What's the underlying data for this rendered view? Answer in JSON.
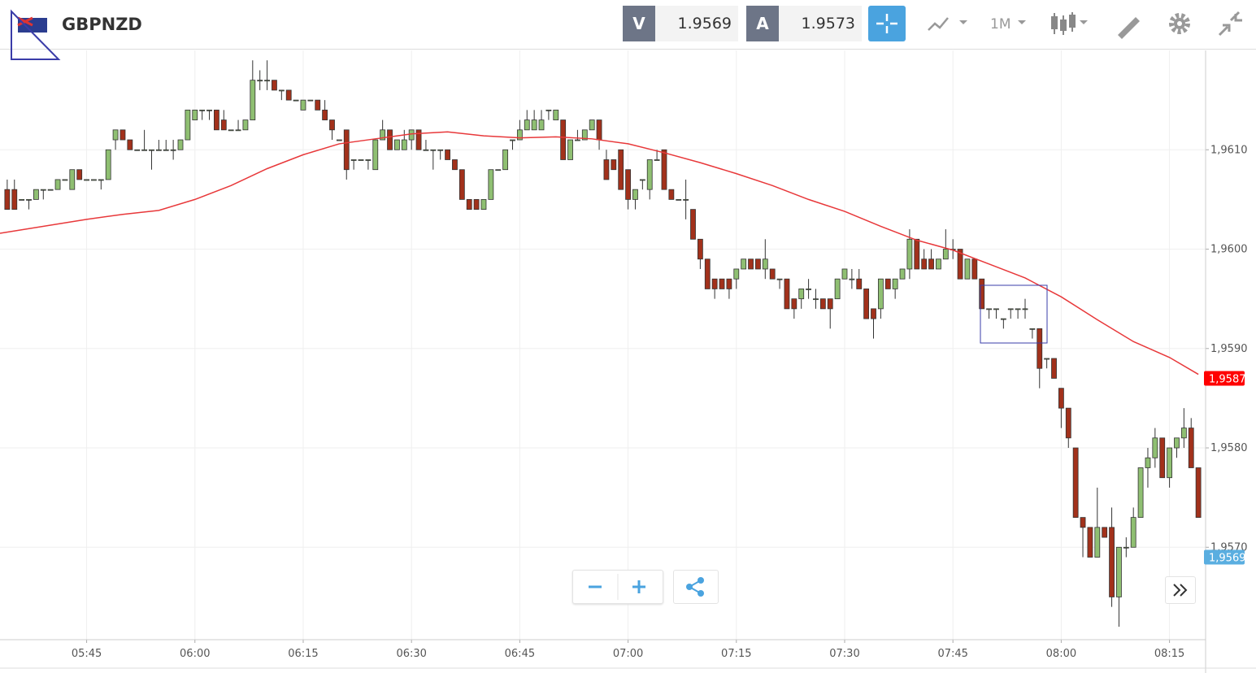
{
  "header": {
    "symbol": "GBPNZD",
    "bid_label": "V",
    "bid": "1.9569",
    "ask_label": "A",
    "ask": "1.9573",
    "timeframe": "1M"
  },
  "chart_data": {
    "type": "candlestick",
    "up_color": "#8fbf72",
    "down_color": "#a2311b",
    "grid": true,
    "xlim": [
      "05:33",
      "08:20"
    ],
    "ylim": [
      1.95607,
      1.962
    ],
    "xticks": [
      "05:45",
      "06:00",
      "06:15",
      "06:30",
      "06:45",
      "07:00",
      "07:15",
      "07:30",
      "07:45",
      "08:00",
      "08:15"
    ],
    "yticks": [
      {
        "value": 1.957,
        "label": "1,9570"
      },
      {
        "value": 1.958,
        "label": "1,9580"
      },
      {
        "value": 1.959,
        "label": "1,9590"
      },
      {
        "value": 1.96,
        "label": "1,9600"
      },
      {
        "value": 1.961,
        "label": "1,9610"
      }
    ],
    "x": [
      "05:34",
      "05:35",
      "05:36",
      "05:37",
      "05:38",
      "05:39",
      "05:40",
      "05:41",
      "05:42",
      "05:43",
      "05:44",
      "05:45",
      "05:46",
      "05:47",
      "05:48",
      "05:49",
      "05:50",
      "05:51",
      "05:52",
      "05:53",
      "05:54",
      "05:55",
      "05:56",
      "05:57",
      "05:58",
      "05:59",
      "06:00",
      "06:01",
      "06:02",
      "06:03",
      "06:04",
      "06:05",
      "06:06",
      "06:07",
      "06:08",
      "06:09",
      "06:10",
      "06:11",
      "06:12",
      "06:13",
      "06:14",
      "06:15",
      "06:16",
      "06:17",
      "06:18",
      "06:19",
      "06:20",
      "06:21",
      "06:22",
      "06:23",
      "06:24",
      "06:25",
      "06:26",
      "06:27",
      "06:28",
      "06:29",
      "06:30",
      "06:31",
      "06:32",
      "06:33",
      "06:34",
      "06:35",
      "06:36",
      "06:37",
      "06:38",
      "06:39",
      "06:40",
      "06:41",
      "06:42",
      "06:43",
      "06:44",
      "06:45",
      "06:46",
      "06:47",
      "06:48",
      "06:49",
      "06:50",
      "06:51",
      "06:52",
      "06:53",
      "06:54",
      "06:55",
      "06:56",
      "06:57",
      "06:58",
      "06:59",
      "07:00",
      "07:01",
      "07:02",
      "07:03",
      "07:04",
      "07:05",
      "07:06",
      "07:07",
      "07:08",
      "07:09",
      "07:10",
      "07:11",
      "07:12",
      "07:13",
      "07:14",
      "07:15",
      "07:16",
      "07:17",
      "07:18",
      "07:19",
      "07:20",
      "07:21",
      "07:22",
      "07:23",
      "07:24",
      "07:25",
      "07:26",
      "07:27",
      "07:28",
      "07:29",
      "07:30",
      "07:31",
      "07:32",
      "07:33",
      "07:34",
      "07:35",
      "07:36",
      "07:37",
      "07:38",
      "07:39",
      "07:40",
      "07:41",
      "07:42",
      "07:43",
      "07:44",
      "07:45",
      "07:46",
      "07:47",
      "07:48",
      "07:49",
      "07:50",
      "07:51",
      "07:52",
      "07:53",
      "07:54",
      "07:55",
      "07:56",
      "07:57",
      "07:58",
      "07:59",
      "08:00",
      "08:01",
      "08:02",
      "08:03",
      "08:04",
      "08:05",
      "08:06",
      "08:07",
      "08:08",
      "08:09",
      "08:10",
      "08:11",
      "08:12",
      "08:13",
      "08:14",
      "08:15",
      "08:16",
      "08:17",
      "08:18",
      "08:19"
    ],
    "ohlc": [
      [
        1.9606,
        1.9607,
        1.9604,
        1.9604
      ],
      [
        1.9606,
        1.9607,
        1.9604,
        1.9604
      ],
      [
        1.9605,
        1.9605,
        1.9605,
        1.9605
      ],
      [
        1.9605,
        1.9605,
        1.9604,
        1.9605
      ],
      [
        1.9605,
        1.9606,
        1.9605,
        1.9606
      ],
      [
        1.9606,
        1.9606,
        1.9605,
        1.9606
      ],
      [
        1.9606,
        1.9606,
        1.9606,
        1.9606
      ],
      [
        1.9606,
        1.9607,
        1.9606,
        1.9607
      ],
      [
        1.9607,
        1.9607,
        1.9607,
        1.9607
      ],
      [
        1.9606,
        1.9608,
        1.9606,
        1.9608
      ],
      [
        1.9608,
        1.9608,
        1.9607,
        1.9607
      ],
      [
        1.9607,
        1.9607,
        1.9607,
        1.9607
      ],
      [
        1.9607,
        1.9607,
        1.9607,
        1.9607
      ],
      [
        1.9607,
        1.9607,
        1.9606,
        1.9607
      ],
      [
        1.9607,
        1.961,
        1.9607,
        1.961
      ],
      [
        1.9611,
        1.9612,
        1.961,
        1.9612
      ],
      [
        1.9612,
        1.9612,
        1.9611,
        1.9611
      ],
      [
        1.9611,
        1.9611,
        1.961,
        1.961
      ],
      [
        1.961,
        1.961,
        1.961,
        1.961
      ],
      [
        1.961,
        1.9612,
        1.961,
        1.961
      ],
      [
        1.961,
        1.961,
        1.9608,
        1.961
      ],
      [
        1.961,
        1.9611,
        1.961,
        1.961
      ],
      [
        1.961,
        1.9611,
        1.961,
        1.961
      ],
      [
        1.961,
        1.9611,
        1.9609,
        1.961
      ],
      [
        1.961,
        1.9611,
        1.961,
        1.9611
      ],
      [
        1.9611,
        1.9614,
        1.9611,
        1.9614
      ],
      [
        1.9613,
        1.9614,
        1.9613,
        1.9614
      ],
      [
        1.9614,
        1.9614,
        1.9613,
        1.9614
      ],
      [
        1.9614,
        1.9614,
        1.9613,
        1.9614
      ],
      [
        1.9614,
        1.9614,
        1.9612,
        1.9612
      ],
      [
        1.9613,
        1.9614,
        1.9612,
        1.9612
      ],
      [
        1.9612,
        1.9612,
        1.9612,
        1.9612
      ],
      [
        1.9612,
        1.9613,
        1.9612,
        1.9612
      ],
      [
        1.9612,
        1.9613,
        1.9612,
        1.9613
      ],
      [
        1.9613,
        1.9619,
        1.9613,
        1.9617
      ],
      [
        1.9617,
        1.9618,
        1.9616,
        1.9617
      ],
      [
        1.9617,
        1.9619,
        1.9616,
        1.9617
      ],
      [
        1.9617,
        1.9617,
        1.9616,
        1.9616
      ],
      [
        1.9616,
        1.9616,
        1.9615,
        1.9616
      ],
      [
        1.9616,
        1.9616,
        1.9615,
        1.9615
      ],
      [
        1.9615,
        1.9615,
        1.9615,
        1.9615
      ],
      [
        1.9614,
        1.9615,
        1.9614,
        1.9615
      ],
      [
        1.9615,
        1.9615,
        1.9615,
        1.9615
      ],
      [
        1.9615,
        1.9615,
        1.9614,
        1.9614
      ],
      [
        1.9614,
        1.9615,
        1.9613,
        1.9613
      ],
      [
        1.9613,
        1.9613,
        1.9611,
        1.9612
      ],
      [
        1.9611,
        1.9611,
        1.9611,
        1.9611
      ],
      [
        1.9612,
        1.9612,
        1.9607,
        1.9608
      ],
      [
        1.9609,
        1.9609,
        1.9608,
        1.9609
      ],
      [
        1.9609,
        1.9609,
        1.9609,
        1.9609
      ],
      [
        1.9609,
        1.9609,
        1.9608,
        1.9609
      ],
      [
        1.9608,
        1.9611,
        1.9608,
        1.9611
      ],
      [
        1.9611,
        1.9613,
        1.9611,
        1.9612
      ],
      [
        1.9612,
        1.9612,
        1.961,
        1.961
      ],
      [
        1.961,
        1.9611,
        1.961,
        1.9611
      ],
      [
        1.961,
        1.9612,
        1.961,
        1.9611
      ],
      [
        1.9611,
        1.9612,
        1.961,
        1.9612
      ],
      [
        1.9612,
        1.9612,
        1.961,
        1.961
      ],
      [
        1.961,
        1.9611,
        1.961,
        1.961
      ],
      [
        1.961,
        1.961,
        1.9608,
        1.961
      ],
      [
        1.961,
        1.961,
        1.9609,
        1.961
      ],
      [
        1.961,
        1.961,
        1.9609,
        1.9609
      ],
      [
        1.9609,
        1.9609,
        1.9608,
        1.9608
      ],
      [
        1.9608,
        1.9608,
        1.9605,
        1.9605
      ],
      [
        1.9605,
        1.9605,
        1.9604,
        1.9604
      ],
      [
        1.9605,
        1.9605,
        1.9604,
        1.9604
      ],
      [
        1.9604,
        1.9605,
        1.9604,
        1.9605
      ],
      [
        1.9605,
        1.9608,
        1.9605,
        1.9608
      ],
      [
        1.9608,
        1.9608,
        1.9608,
        1.9608
      ],
      [
        1.9608,
        1.961,
        1.9608,
        1.961
      ],
      [
        1.9611,
        1.9611,
        1.961,
        1.9611
      ],
      [
        1.9611,
        1.9613,
        1.9611,
        1.9612
      ],
      [
        1.9612,
        1.9614,
        1.9612,
        1.9613
      ],
      [
        1.9612,
        1.9614,
        1.9612,
        1.9613
      ],
      [
        1.9612,
        1.9614,
        1.9612,
        1.9613
      ],
      [
        1.9614,
        1.9614,
        1.9613,
        1.9614
      ],
      [
        1.9613,
        1.9614,
        1.9613,
        1.9614
      ],
      [
        1.9613,
        1.9613,
        1.9609,
        1.9609
      ],
      [
        1.9609,
        1.9611,
        1.9609,
        1.9611
      ],
      [
        1.9611,
        1.9612,
        1.9611,
        1.9611
      ],
      [
        1.9611,
        1.9612,
        1.9611,
        1.9612
      ],
      [
        1.9612,
        1.9613,
        1.9612,
        1.9613
      ],
      [
        1.9613,
        1.9613,
        1.961,
        1.9611
      ],
      [
        1.9609,
        1.961,
        1.9607,
        1.9607
      ],
      [
        1.9609,
        1.9609,
        1.9608,
        1.9608
      ],
      [
        1.961,
        1.961,
        1.9606,
        1.9606
      ],
      [
        1.9608,
        1.9608,
        1.9604,
        1.9605
      ],
      [
        1.9605,
        1.9606,
        1.9604,
        1.9606
      ],
      [
        1.9607,
        1.9607,
        1.9606,
        1.9607
      ],
      [
        1.9606,
        1.9609,
        1.9605,
        1.9609
      ],
      [
        1.9609,
        1.961,
        1.9609,
        1.9609
      ],
      [
        1.961,
        1.961,
        1.9606,
        1.9606
      ],
      [
        1.9606,
        1.9606,
        1.9605,
        1.9605
      ],
      [
        1.9605,
        1.9605,
        1.9605,
        1.9605
      ],
      [
        1.9605,
        1.9607,
        1.9603,
        1.9605
      ],
      [
        1.9604,
        1.9604,
        1.9601,
        1.9601
      ],
      [
        1.9601,
        1.9601,
        1.9598,
        1.9599
      ],
      [
        1.9599,
        1.9599,
        1.9596,
        1.9596
      ],
      [
        1.9597,
        1.9597,
        1.9595,
        1.9596
      ],
      [
        1.9597,
        1.9597,
        1.9596,
        1.9596
      ],
      [
        1.9597,
        1.9597,
        1.9595,
        1.9596
      ],
      [
        1.9597,
        1.9598,
        1.9596,
        1.9598
      ],
      [
        1.9598,
        1.9599,
        1.9598,
        1.9599
      ],
      [
        1.9599,
        1.9599,
        1.9598,
        1.9598
      ],
      [
        1.9599,
        1.9599,
        1.9598,
        1.9598
      ],
      [
        1.9598,
        1.9601,
        1.9597,
        1.9599
      ],
      [
        1.9598,
        1.9598,
        1.9597,
        1.9597
      ],
      [
        1.9597,
        1.9597,
        1.9596,
        1.9597
      ],
      [
        1.9597,
        1.9597,
        1.9594,
        1.9594
      ],
      [
        1.9595,
        1.9595,
        1.9593,
        1.9594
      ],
      [
        1.9595,
        1.9596,
        1.9594,
        1.9596
      ],
      [
        1.9596,
        1.9597,
        1.9595,
        1.9596
      ],
      [
        1.9595,
        1.9596,
        1.9594,
        1.9595
      ],
      [
        1.9595,
        1.9595,
        1.9594,
        1.9594
      ],
      [
        1.9595,
        1.9595,
        1.9592,
        1.9594
      ],
      [
        1.9595,
        1.9597,
        1.9595,
        1.9597
      ],
      [
        1.9597,
        1.9598,
        1.9597,
        1.9598
      ],
      [
        1.9597,
        1.9598,
        1.9596,
        1.9597
      ],
      [
        1.9597,
        1.9598,
        1.9596,
        1.9596
      ],
      [
        1.9596,
        1.9596,
        1.9593,
        1.9593
      ],
      [
        1.9594,
        1.9594,
        1.9591,
        1.9593
      ],
      [
        1.9594,
        1.9597,
        1.9593,
        1.9597
      ],
      [
        1.9597,
        1.9597,
        1.9596,
        1.9596
      ],
      [
        1.9596,
        1.9597,
        1.9595,
        1.9597
      ],
      [
        1.9597,
        1.9598,
        1.9597,
        1.9598
      ],
      [
        1.9598,
        1.9602,
        1.9597,
        1.9601
      ],
      [
        1.9601,
        1.9601,
        1.9598,
        1.9598
      ],
      [
        1.9599,
        1.96,
        1.9598,
        1.9598
      ],
      [
        1.9599,
        1.96,
        1.9598,
        1.9598
      ],
      [
        1.9598,
        1.9599,
        1.9598,
        1.9599
      ],
      [
        1.9599,
        1.9602,
        1.9599,
        1.96
      ],
      [
        1.96,
        1.9601,
        1.9599,
        1.96
      ],
      [
        1.96,
        1.96,
        1.9597,
        1.9597
      ],
      [
        1.9597,
        1.9599,
        1.9597,
        1.9599
      ],
      [
        1.9599,
        1.9599,
        1.9597,
        1.9597
      ],
      [
        1.9597,
        1.9597,
        1.9594,
        1.9594
      ],
      [
        1.9594,
        1.9594,
        1.9593,
        1.9594
      ],
      [
        1.9594,
        1.9594,
        1.9593,
        1.9594
      ],
      [
        1.9593,
        1.9593,
        1.9592,
        1.9593
      ],
      [
        1.9594,
        1.9594,
        1.9593,
        1.9594
      ],
      [
        1.9594,
        1.9594,
        1.9593,
        1.9594
      ],
      [
        1.9594,
        1.9595,
        1.9593,
        1.9594
      ],
      [
        1.9592,
        1.9592,
        1.9591,
        1.9592
      ],
      [
        1.9592,
        1.9592,
        1.9586,
        1.9588
      ],
      [
        1.9589,
        1.9589,
        1.9588,
        1.9589
      ],
      [
        1.9589,
        1.9589,
        1.9587,
        1.9587
      ],
      [
        1.9586,
        1.9586,
        1.9582,
        1.9584
      ],
      [
        1.9584,
        1.9584,
        1.958,
        1.9581
      ],
      [
        1.958,
        1.958,
        1.9573,
        1.9573
      ],
      [
        1.9573,
        1.9573,
        1.9569,
        1.9572
      ],
      [
        1.9572,
        1.9572,
        1.9569,
        1.9569
      ],
      [
        1.9569,
        1.9576,
        1.9569,
        1.9572
      ],
      [
        1.9572,
        1.9572,
        1.9571,
        1.9571
      ],
      [
        1.9572,
        1.9574,
        1.9564,
        1.9565
      ],
      [
        1.9565,
        1.957,
        1.9562,
        1.957
      ],
      [
        1.957,
        1.9571,
        1.9569,
        1.957
      ],
      [
        1.957,
        1.9574,
        1.957,
        1.9573
      ],
      [
        1.9573,
        1.9578,
        1.9573,
        1.9578
      ],
      [
        1.9578,
        1.958,
        1.9576,
        1.9579
      ],
      [
        1.9579,
        1.9582,
        1.9578,
        1.9581
      ],
      [
        1.9581,
        1.9581,
        1.9577,
        1.9577
      ],
      [
        1.9577,
        1.958,
        1.9576,
        1.958
      ],
      [
        1.958,
        1.9581,
        1.9579,
        1.9581
      ],
      [
        1.9581,
        1.9584,
        1.958,
        1.9582
      ],
      [
        1.9582,
        1.9583,
        1.9578,
        1.9578
      ],
      [
        1.9578,
        1.9578,
        1.9573,
        1.9573
      ]
    ],
    "ma": {
      "color": "#e8383a",
      "x": [
        "05:33",
        "05:45",
        "05:50",
        "05:55",
        "06:00",
        "06:05",
        "06:10",
        "06:15",
        "06:20",
        "06:25",
        "06:30",
        "06:35",
        "06:40",
        "06:45",
        "06:50",
        "06:55",
        "07:00",
        "07:05",
        "07:10",
        "07:15",
        "07:20",
        "07:25",
        "07:30",
        "07:35",
        "07:40",
        "07:45",
        "07:50",
        "07:55",
        "08:00",
        "08:05",
        "08:10",
        "08:15",
        "08:19"
      ],
      "values": [
        1.96016,
        1.9603,
        1.96035,
        1.96039,
        1.9605,
        1.96064,
        1.96081,
        1.96095,
        1.96106,
        1.96111,
        1.96116,
        1.96118,
        1.96114,
        1.96112,
        1.96113,
        1.96111,
        1.96106,
        1.96097,
        1.96087,
        1.96076,
        1.96064,
        1.9605,
        1.96038,
        1.96023,
        1.96009,
        1.95999,
        1.95985,
        1.95971,
        1.95952,
        1.95929,
        1.95907,
        1.95891,
        1.95874
      ],
      "last": {
        "value": 1.9587,
        "label": "1,9587"
      }
    },
    "last_price": {
      "value": 1.9569,
      "label": "1,9569",
      "color": "#5aaee0"
    }
  }
}
